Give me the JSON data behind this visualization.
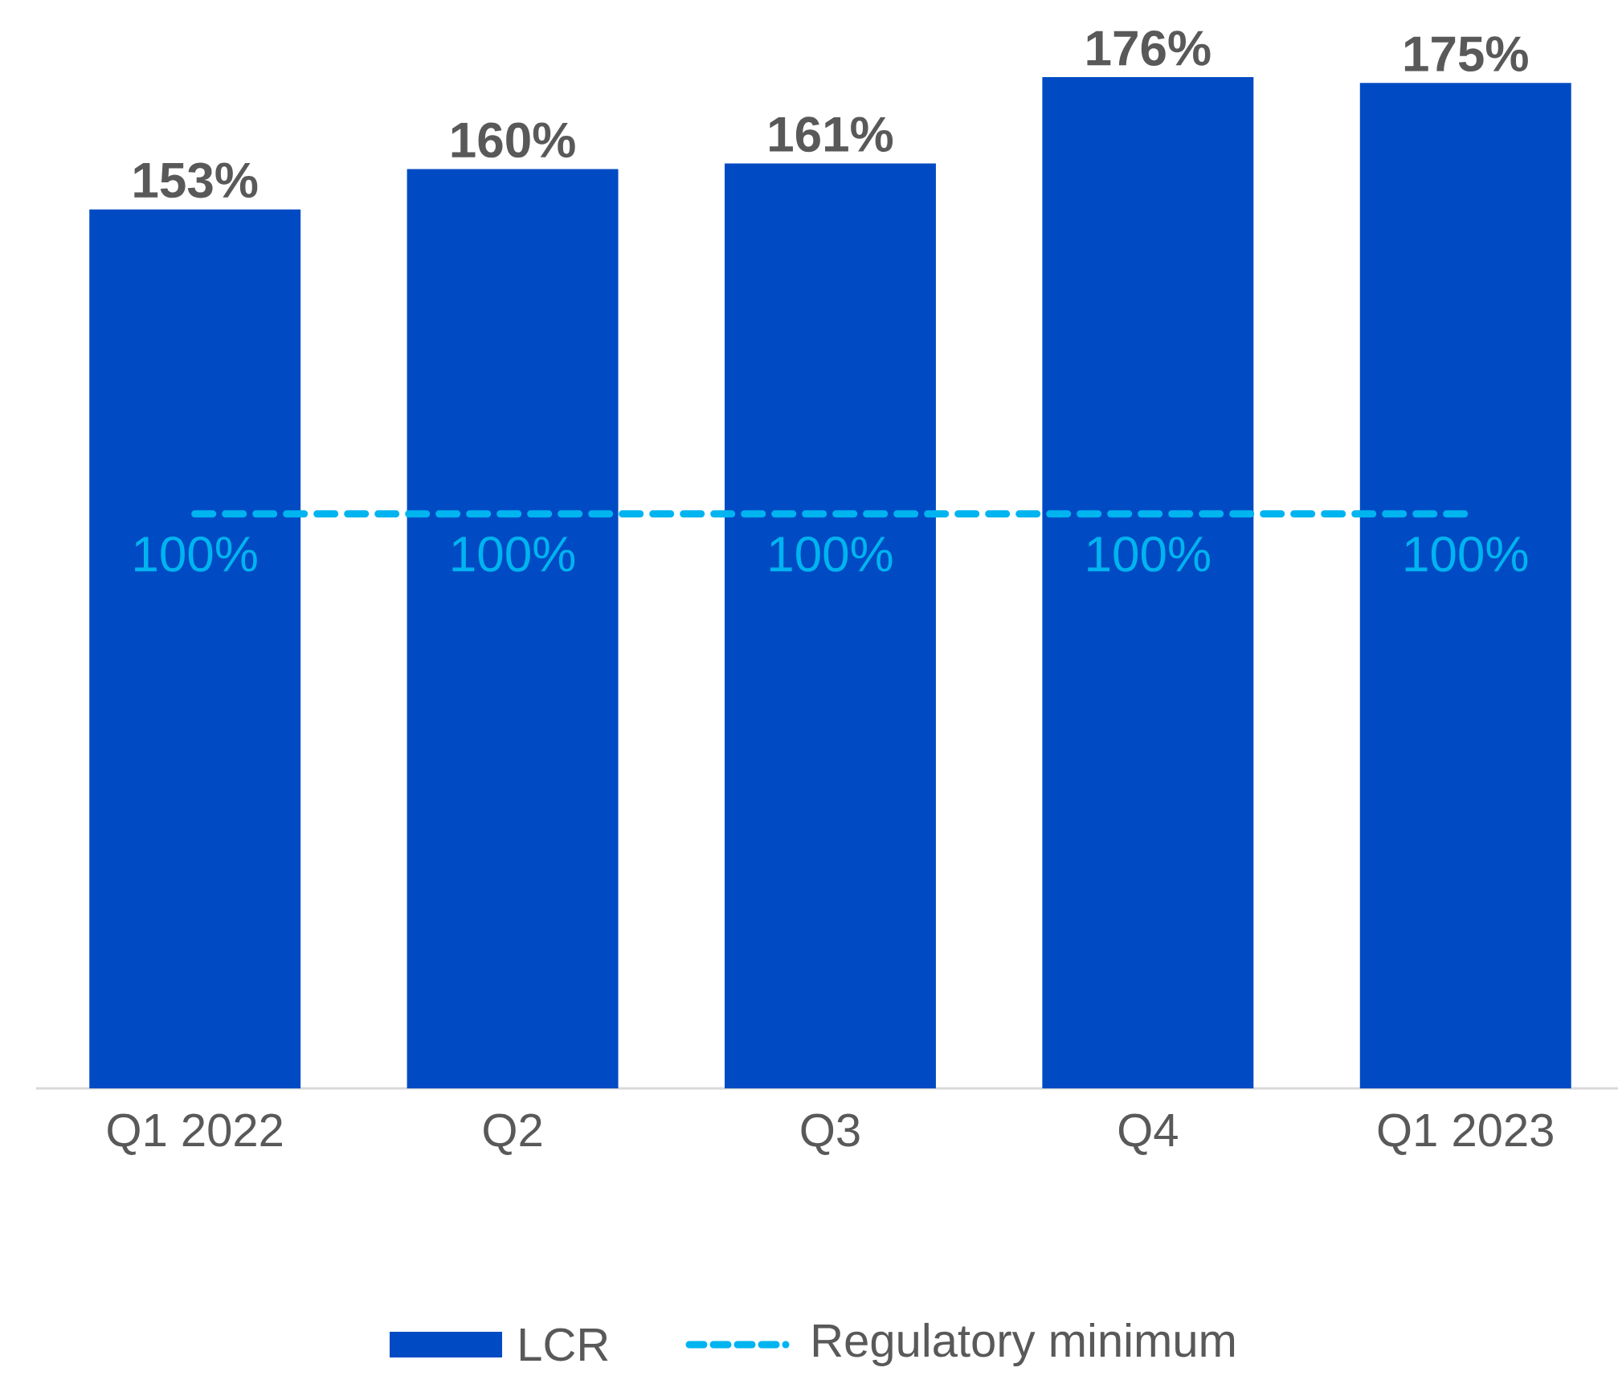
{
  "chart_data": {
    "type": "bar",
    "categories": [
      "Q1 2022",
      "Q2",
      "Q3",
      "Q4",
      "Q1 2023"
    ],
    "tick_labels": "x",
    "legend": "bottom",
    "series": [
      {
        "name": "LCR",
        "color": "#004bc4",
        "values": [
          153,
          160,
          161,
          176,
          175
        ],
        "value_labels": [
          "153%",
          "160%",
          "161%",
          "176%",
          "175%"
        ]
      },
      {
        "name": "Regulatory minimum",
        "type": "line",
        "line_style": "dashed",
        "color": "#00b4f0",
        "values": [
          100,
          100,
          100,
          100,
          100
        ],
        "value_labels": [
          "100%",
          "100%",
          "100%",
          "100%",
          "100%"
        ]
      }
    ]
  }
}
